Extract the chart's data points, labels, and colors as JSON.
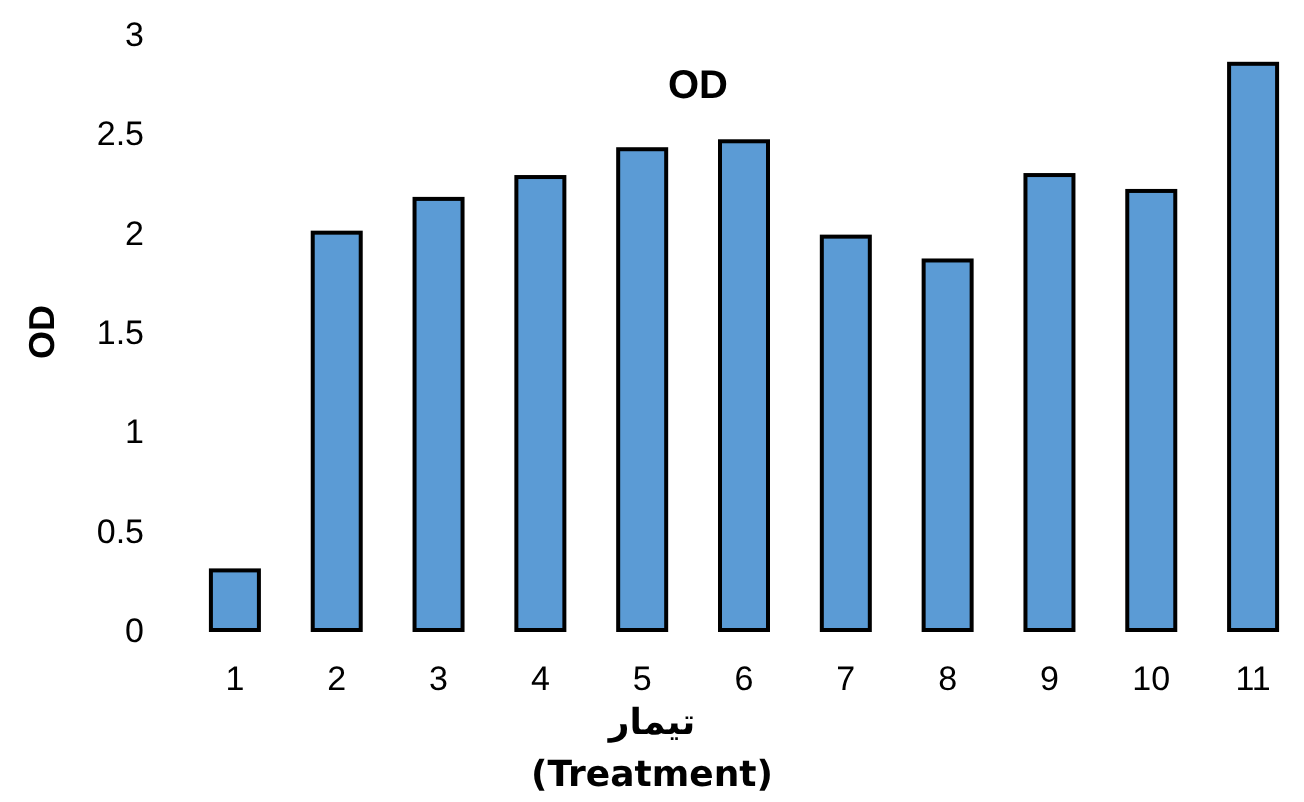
{
  "chart_data": {
    "type": "bar",
    "title": "OD",
    "xlabel": "تیمار (Treatment)",
    "ylabel": "OD",
    "categories": [
      "1",
      "2",
      "3",
      "4",
      "5",
      "6",
      "7",
      "8",
      "9",
      "10",
      "11"
    ],
    "values": [
      0.3,
      2.0,
      2.17,
      2.28,
      2.42,
      2.46,
      1.98,
      1.86,
      2.29,
      2.21,
      2.85
    ],
    "color": "#5b9bd5",
    "ylim": [
      0,
      3
    ],
    "yticks": [
      0,
      0.5,
      1,
      1.5,
      2,
      2.5,
      3
    ],
    "grid": false
  }
}
